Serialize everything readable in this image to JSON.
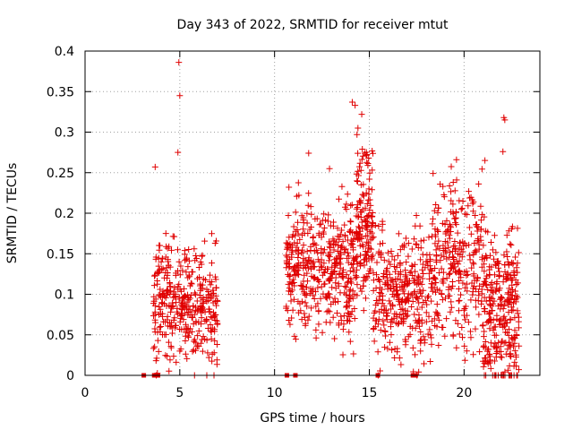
{
  "chart_data": {
    "type": "scatter",
    "title": "Day 343 of 2022, SRMTID for receiver mtut",
    "xlabel": "GPS time / hours",
    "ylabel": "SRMTID / TECUs",
    "xlim": [
      0,
      24
    ],
    "ylim": [
      0,
      0.4
    ],
    "grid": true,
    "marker": "+",
    "x_ticks": [
      0,
      5,
      10,
      15,
      20
    ],
    "x_tick_labels": [
      "0",
      "5",
      "10",
      "15",
      "20"
    ],
    "y_ticks": [
      0,
      0.05,
      0.1,
      0.15,
      0.2,
      0.25,
      0.3,
      0.35,
      0.4
    ],
    "y_tick_labels": [
      "0",
      "0.05",
      "0.1",
      "0.15",
      "0.2",
      "0.25",
      "0.3",
      "0.35",
      "0.4"
    ],
    "series": [
      {
        "name": "SRMTID",
        "color": "#e00000",
        "clusters": [
          {
            "x_range": [
              3.6,
              7.0
            ],
            "y_range": [
              0.0,
              0.2
            ],
            "y_center": 0.09,
            "count": 380
          },
          {
            "x_range": [
              10.6,
              14.3
            ],
            "y_range": [
              0.02,
              0.25
            ],
            "y_center": 0.13,
            "count": 420
          },
          {
            "x_range": [
              14.3,
              15.2
            ],
            "y_range": [
              0.08,
              0.33
            ],
            "y_center": 0.18,
            "count": 150
          },
          {
            "x_range": [
              15.2,
              18.3
            ],
            "y_range": [
              0.0,
              0.22
            ],
            "y_center": 0.1,
            "count": 320
          },
          {
            "x_range": [
              18.3,
              21.0
            ],
            "y_range": [
              0.0,
              0.26
            ],
            "y_center": 0.14,
            "count": 280
          },
          {
            "x_range": [
              21.0,
              22.9
            ],
            "y_range": [
              0.0,
              0.23
            ],
            "y_center": 0.08,
            "count": 300
          }
        ],
        "points": [
          {
            "x": 4.95,
            "y": 0.386
          },
          {
            "x": 5.0,
            "y": 0.345
          },
          {
            "x": 4.9,
            "y": 0.275
          },
          {
            "x": 3.7,
            "y": 0.257
          },
          {
            "x": 14.1,
            "y": 0.337
          },
          {
            "x": 14.25,
            "y": 0.333
          },
          {
            "x": 14.6,
            "y": 0.322
          },
          {
            "x": 14.4,
            "y": 0.305
          },
          {
            "x": 14.35,
            "y": 0.297
          },
          {
            "x": 22.1,
            "y": 0.318
          },
          {
            "x": 22.15,
            "y": 0.315
          },
          {
            "x": 22.05,
            "y": 0.276
          },
          {
            "x": 19.6,
            "y": 0.266
          },
          {
            "x": 21.1,
            "y": 0.265
          },
          {
            "x": 11.8,
            "y": 0.274
          },
          {
            "x": 12.9,
            "y": 0.255
          }
        ],
        "zero_points": [
          3.1,
          3.65,
          3.75,
          3.85,
          10.65,
          11.1,
          15.45,
          17.3,
          17.45
        ]
      }
    ]
  }
}
